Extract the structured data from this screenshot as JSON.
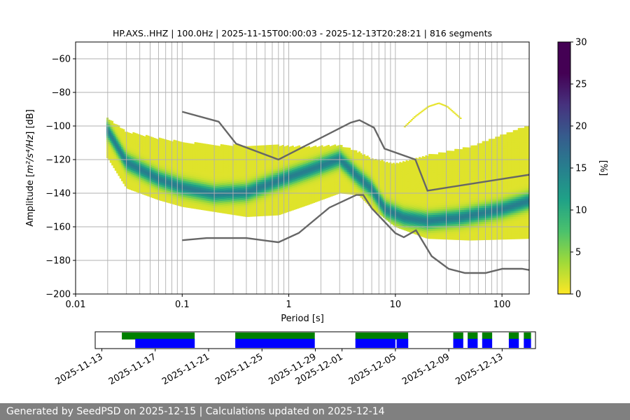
{
  "chart_data": [
    {
      "type": "heatmap",
      "title": "HP.AXS..HHZ | 100.0Hz | 2025-11-15T00:00:03 - 2025-12-13T20:28:21 | 816 segments",
      "xlabel": "Period [s]",
      "ylabel_prefix": "Amplitude [",
      "ylabel_math": "m²/s⁴/Hz",
      "ylabel_suffix": "] [dB]",
      "x_scale": "log",
      "xlim": [
        0.01,
        180
      ],
      "ylim": [
        -200,
        -50
      ],
      "x_ticks": [
        {
          "value": 0.01,
          "label": "0.01"
        },
        {
          "value": 0.1,
          "label": "0.1"
        },
        {
          "value": 1,
          "label": "1"
        },
        {
          "value": 10,
          "label": "10"
        },
        {
          "value": 100,
          "label": "100"
        }
      ],
      "y_ticks": [
        {
          "value": -60,
          "label": "−60"
        },
        {
          "value": -80,
          "label": "−80"
        },
        {
          "value": -100,
          "label": "−100"
        },
        {
          "value": -120,
          "label": "−120"
        },
        {
          "value": -140,
          "label": "−140"
        },
        {
          "value": -160,
          "label": "−160"
        },
        {
          "value": -180,
          "label": "−180"
        },
        {
          "value": -200,
          "label": "−200"
        }
      ],
      "grid": true,
      "vertical_grid_periods": [
        0.02,
        0.03,
        0.04,
        0.05,
        0.06,
        0.07,
        0.08,
        0.09,
        0.1,
        0.2,
        0.3,
        0.4,
        0.5,
        0.6,
        0.7,
        0.8,
        0.9,
        1,
        2,
        3,
        4,
        5,
        6,
        7,
        8,
        9,
        10,
        20,
        30,
        40,
        50,
        60,
        70,
        80,
        90,
        100
      ],
      "colorbar": {
        "label": "[%]",
        "min": 0,
        "max": 30,
        "ticks": [
          "0",
          "5",
          "10",
          "15",
          "20",
          "25",
          "30"
        ],
        "colormap": "viridis_r"
      },
      "high_noise_model": {
        "periods": [
          0.1,
          0.22,
          0.32,
          0.8,
          3.8,
          4.6,
          6.3,
          7.9,
          15.4,
          20,
          180
        ],
        "db": [
          -91.5,
          -97.4,
          -110.5,
          -120,
          -98,
          -96.5,
          -101,
          -113.5,
          -120,
          -138.5,
          -129
        ]
      },
      "low_noise_model": {
        "periods": [
          0.1,
          0.17,
          0.4,
          0.8,
          1.24,
          2.4,
          4.3,
          5,
          6,
          10,
          12,
          15.6,
          21.9,
          31.6,
          45,
          70,
          101,
          154,
          180
        ],
        "db": [
          -168,
          -166.7,
          -166.7,
          -169.2,
          -163.7,
          -148.6,
          -141.1,
          -141.1,
          -149,
          -163.8,
          -166.2,
          -162.1,
          -177.5,
          -185,
          -187.5,
          -187.5,
          -185,
          -185,
          -185.7
        ]
      },
      "modal_psd": {
        "periods": [
          0.02,
          0.03,
          0.06,
          0.1,
          0.2,
          0.4,
          0.8,
          1.5,
          3,
          4.5,
          6,
          8,
          12,
          20,
          40,
          100,
          180
        ],
        "db": [
          -103,
          -122,
          -132,
          -137,
          -141,
          -140,
          -133,
          -127,
          -120,
          -131,
          -138,
          -150,
          -155,
          -157,
          -155,
          -150,
          -145
        ]
      },
      "psd_upper_envelope": {
        "periods": [
          0.02,
          0.03,
          0.06,
          0.1,
          0.2,
          0.4,
          0.8,
          1.5,
          3,
          4.5,
          6,
          10,
          20,
          50,
          180
        ],
        "db": [
          -96,
          -104,
          -108,
          -110,
          -112,
          -112,
          -112,
          -113,
          -112,
          -116,
          -120,
          -123,
          -118,
          -113,
          -100
        ]
      },
      "psd_lower_envelope": {
        "periods": [
          0.02,
          0.03,
          0.06,
          0.1,
          0.2,
          0.4,
          0.8,
          1.5,
          3,
          4.5,
          6,
          10,
          20,
          50,
          180
        ],
        "db": [
          -119,
          -137,
          -144,
          -148,
          -151,
          -154,
          -153,
          -147,
          -140,
          -141,
          -149,
          -160,
          -167,
          -168,
          -167
        ]
      },
      "outlier_arc": {
        "periods": [
          12,
          15,
          20,
          25,
          30,
          40
        ],
        "db": [
          -100,
          -94,
          -88,
          -86,
          -88,
          -95
        ]
      }
    },
    {
      "type": "timeline",
      "x_ticks": [
        "2025-11-13",
        "2025-11-17",
        "2025-11-21",
        "2025-11-25",
        "2025-11-29",
        "2025-12-01",
        "2025-12-05",
        "2025-12-09",
        "2025-12-13"
      ],
      "tick_dates": [
        "2025-11-13",
        "2025-11-17",
        "2025-11-21",
        "2025-11-25",
        "2025-11-29",
        "2025-12-01",
        "2025-12-05",
        "2025-12-09",
        "2025-12-13"
      ],
      "xlim": [
        "2025-11-12T12:00",
        "2025-12-15T12:00"
      ],
      "data_availability_color": "#008000",
      "psd_availability_color": "#0000ff",
      "data_availability": [
        [
          "2025-11-14T12:00",
          "2025-11-19T23:00"
        ],
        [
          "2025-11-23T00:00",
          "2025-11-28T23:00"
        ],
        [
          "2025-12-02T00:00",
          "2025-12-05T23:00"
        ],
        [
          "2025-12-09T08:00",
          "2025-12-10T02:00"
        ],
        [
          "2025-12-10T10:00",
          "2025-12-11T04:00"
        ],
        [
          "2025-12-11T12:00",
          "2025-12-12T06:00"
        ],
        [
          "2025-12-13T12:00",
          "2025-12-14T06:00"
        ],
        [
          "2025-12-14T15:00",
          "2025-12-15T04:00"
        ]
      ],
      "psd_availability": [
        [
          "2025-11-15T12:00",
          "2025-11-19T23:00"
        ],
        [
          "2025-11-23T00:00",
          "2025-11-28T23:00"
        ],
        [
          "2025-12-02T00:00",
          "2025-12-05T00:00"
        ],
        [
          "2025-12-05T02:00",
          "2025-12-05T23:00"
        ],
        [
          "2025-12-09T08:00",
          "2025-12-10T02:00"
        ],
        [
          "2025-12-10T10:00",
          "2025-12-11T04:00"
        ],
        [
          "2025-12-11T12:00",
          "2025-12-12T06:00"
        ],
        [
          "2025-12-13T12:00",
          "2025-12-14T06:00"
        ],
        [
          "2025-12-14T15:00",
          "2025-12-15T04:00"
        ]
      ]
    }
  ],
  "footer": {
    "text": "Generated by SeedPSD on 2025-12-15 | Calculations updated on 2025-12-14"
  },
  "colors": {
    "noise_model": "#666666",
    "footer_bg": "#808080",
    "footer_text": "#ffffff",
    "grid": "#b0b0b0"
  }
}
